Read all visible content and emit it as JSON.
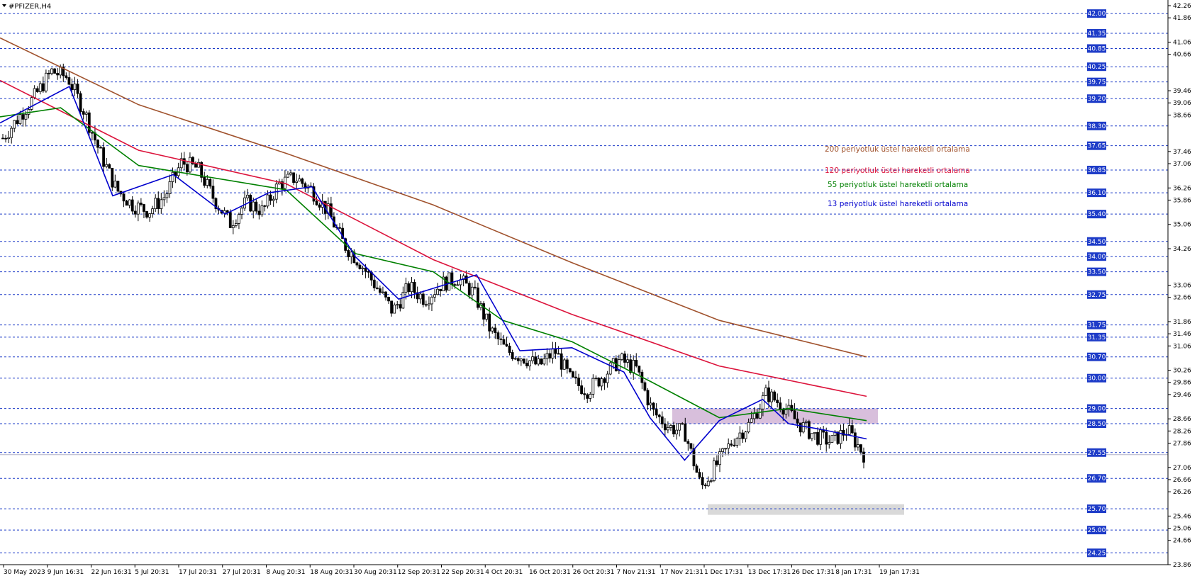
{
  "chart_data": {
    "type": "candlestick",
    "title": "#PFIZER,H4",
    "ylim": [
      23.86,
      42.26
    ],
    "grid": false,
    "x_ticks": [
      "30 May 2023",
      "9 Jun 16:31",
      "22 Jun 16:31",
      "5 Jul 20:31",
      "17 Jul 20:31",
      "27 Jul 20:31",
      "8 Aug 20:31",
      "18 Aug 20:31",
      "30 Aug 20:31",
      "12 Sep 20:31",
      "22 Sep 20:31",
      "4 Oct 20:31",
      "16 Oct 20:31",
      "26 Oct 20:31",
      "7 Nov 21:31",
      "17 Nov 21:31",
      "1 Dec 17:31",
      "13 Dec 17:31",
      "26 Dec 17:31",
      "8 Jan 17:31",
      "19 Jan 17:31"
    ],
    "y_ticks": [
      42.26,
      41.86,
      41.06,
      40.66,
      39.46,
      39.06,
      38.66,
      37.46,
      37.06,
      36.26,
      35.86,
      35.06,
      34.26,
      33.06,
      32.66,
      31.86,
      31.46,
      31.06,
      30.26,
      29.86,
      29.46,
      28.66,
      28.26,
      27.86,
      27.06,
      26.66,
      26.26,
      25.46,
      25.06,
      24.66,
      23.86
    ],
    "levels": [
      42.0,
      41.35,
      40.85,
      40.25,
      39.75,
      39.2,
      38.3,
      37.65,
      36.85,
      36.1,
      35.4,
      34.5,
      34.0,
      33.5,
      32.75,
      31.75,
      31.35,
      30.7,
      30.0,
      29.0,
      28.5,
      27.55,
      26.7,
      25.7,
      25.0,
      24.25
    ],
    "current_price": 27.48,
    "zones": [
      {
        "from": 28.5,
        "to": 29.0,
        "color": "#d8bfdc"
      },
      {
        "from": 25.5,
        "to": 25.85,
        "color": "#d9d9d9"
      }
    ],
    "series": [
      {
        "name": "200 periyotluk üstel hareketli ortalama",
        "color": "#a0522d",
        "x": [
          0,
          0.16,
          0.33,
          0.5,
          0.66,
          0.83,
          1.0
        ],
        "values": [
          41.2,
          39.0,
          37.4,
          35.7,
          33.8,
          31.9,
          30.7
        ]
      },
      {
        "name": "120 periyotluk üstel hareketli ortalama",
        "color": "#dc143c",
        "x": [
          0,
          0.16,
          0.33,
          0.5,
          0.66,
          0.83,
          1.0
        ],
        "values": [
          39.8,
          37.5,
          36.4,
          33.9,
          32.1,
          30.4,
          29.4
        ]
      },
      {
        "name": "55 periyotluk üstel hareketli ortalama",
        "color": "#008000",
        "x": [
          0,
          0.07,
          0.16,
          0.33,
          0.41,
          0.5,
          0.58,
          0.66,
          0.75,
          0.83,
          0.91,
          1.0
        ],
        "values": [
          38.6,
          38.9,
          37.0,
          36.2,
          34.1,
          33.5,
          31.9,
          31.2,
          29.9,
          28.7,
          29.0,
          28.6
        ]
      },
      {
        "name": "13 periyotluk üstel hareketli ortalama",
        "color": "#0000cd",
        "x": [
          0,
          0.08,
          0.13,
          0.2,
          0.26,
          0.31,
          0.36,
          0.41,
          0.46,
          0.55,
          0.6,
          0.66,
          0.72,
          0.75,
          0.79,
          0.83,
          0.88,
          0.91,
          0.95,
          1.0
        ],
        "values": [
          38.4,
          39.6,
          36.0,
          36.7,
          35.4,
          36.1,
          36.3,
          34.0,
          32.6,
          33.4,
          30.9,
          31.0,
          30.2,
          28.7,
          27.3,
          28.6,
          29.3,
          28.5,
          28.3,
          28.0
        ]
      }
    ],
    "candles_close": [
      37.9,
      38.6,
      39.3,
      40.1,
      39.9,
      38.8,
      37.4,
      36.2,
      35.7,
      35.5,
      36.0,
      37.1,
      36.9,
      35.9,
      35.1,
      35.8,
      35.5,
      36.4,
      36.6,
      36.2,
      35.5,
      34.4,
      33.8,
      33.0,
      32.2,
      33.0,
      32.6,
      33.1,
      33.3,
      32.8,
      31.6,
      30.9,
      30.7,
      30.4,
      30.9,
      29.9,
      29.6,
      30.1,
      30.6,
      30.3,
      28.9,
      28.4,
      28.2,
      26.4,
      27.2,
      28.0,
      28.5,
      29.5,
      29.1,
      28.5,
      28.1,
      27.9,
      28.3,
      27.5
    ]
  }
}
